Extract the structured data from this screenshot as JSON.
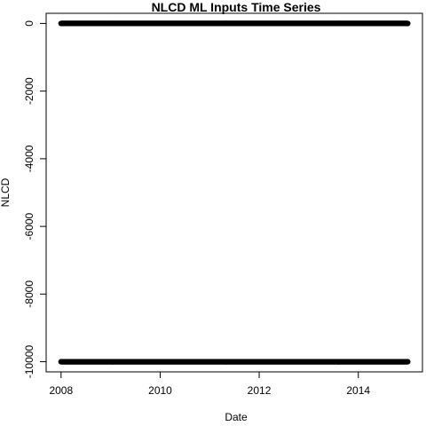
{
  "chart_data": {
    "type": "scatter",
    "title": "NLCD ML Inputs Time Series",
    "xlabel": "Date",
    "ylabel": "NLCD",
    "xlim": [
      "2007-09-13",
      "2015-04-19"
    ],
    "ylim": [
      -10300,
      300
    ],
    "x_ticks": [
      {
        "label": "2008",
        "value": "2008-01-01"
      },
      {
        "label": "2010",
        "value": "2010-01-01"
      },
      {
        "label": "2012",
        "value": "2012-01-01"
      },
      {
        "label": "2014",
        "value": "2014-01-01"
      }
    ],
    "y_ticks": [
      {
        "label": "0",
        "value": 0
      },
      {
        "label": "-2000",
        "value": -2000
      },
      {
        "label": "-4000",
        "value": -4000
      },
      {
        "label": "-6000",
        "value": -6000
      },
      {
        "label": "-8000",
        "value": -8000
      },
      {
        "label": "-10000",
        "value": -10000
      }
    ],
    "series": [
      {
        "x_start": "2008-01-01",
        "x_end": "2014-12-31",
        "y": 0
      },
      {
        "x_start": "2008-01-01",
        "x_end": "2014-12-31",
        "y": -10000
      }
    ],
    "grid": false,
    "point_color": "#000000"
  }
}
